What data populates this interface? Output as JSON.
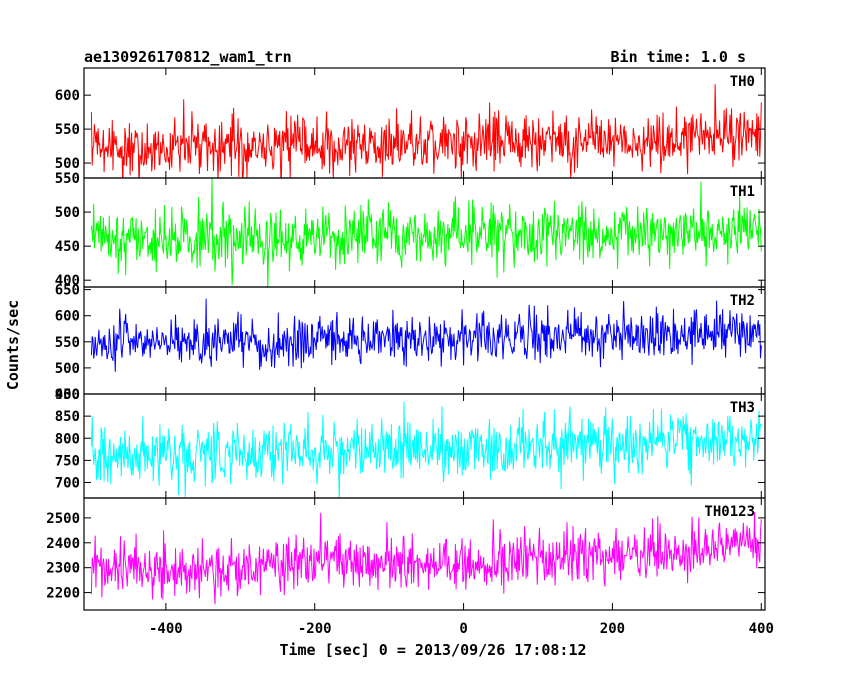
{
  "header": {
    "title": "ae130926170812_wam1_trn",
    "bin_time": "Bin time: 1.0 s"
  },
  "chart_data": {
    "type": "line",
    "xlabel": "Time [sec] 0 = 2013/09/26 17:08:12",
    "ylabel": "Counts/sec",
    "xlim": [
      -510,
      405
    ],
    "x_range": [
      -500,
      400
    ],
    "x_step": 1.0,
    "xticks": [
      -400,
      -200,
      0,
      200,
      400
    ],
    "grid": false,
    "panels": [
      {
        "name": "TH0",
        "color": "#ff0000",
        "ylim": [
          478,
          640
        ],
        "yticks": [
          500,
          550,
          600
        ],
        "trend": [
          [
            -500,
            520
          ],
          [
            -300,
            522
          ],
          [
            -100,
            527
          ],
          [
            100,
            530
          ],
          [
            300,
            537
          ],
          [
            400,
            550
          ]
        ],
        "noise_sd": 22
      },
      {
        "name": "TH1",
        "color": "#00ff00",
        "ylim": [
          390,
          550
        ],
        "yticks": [
          400,
          450,
          500,
          550
        ],
        "trend": [
          [
            -500,
            460
          ],
          [
            -200,
            465
          ],
          [
            100,
            468
          ],
          [
            400,
            472
          ]
        ],
        "noise_sd": 22
      },
      {
        "name": "TH2",
        "color": "#0000ff",
        "ylim": [
          450,
          655
        ],
        "yticks": [
          450,
          500,
          550,
          600,
          650
        ],
        "trend": [
          [
            -500,
            545
          ],
          [
            -200,
            553
          ],
          [
            100,
            560
          ],
          [
            400,
            568
          ]
        ],
        "noise_sd": 24
      },
      {
        "name": "TH3",
        "color": "#00ffff",
        "ylim": [
          665,
          900
        ],
        "yticks": [
          700,
          750,
          800,
          850,
          900
        ],
        "trend": [
          [
            -500,
            758
          ],
          [
            -300,
            765
          ],
          [
            -100,
            778
          ],
          [
            100,
            780
          ],
          [
            300,
            792
          ],
          [
            400,
            805
          ]
        ],
        "noise_sd": 33
      },
      {
        "name": "TH0123",
        "color": "#ff00ff",
        "ylim": [
          2130,
          2580
        ],
        "yticks": [
          2200,
          2300,
          2400,
          2500
        ],
        "trend": [
          [
            -500,
            2285
          ],
          [
            -300,
            2295
          ],
          [
            -200,
            2320
          ],
          [
            0,
            2320
          ],
          [
            200,
            2345
          ],
          [
            300,
            2370
          ],
          [
            400,
            2420
          ]
        ],
        "noise_sd": 55
      }
    ]
  }
}
